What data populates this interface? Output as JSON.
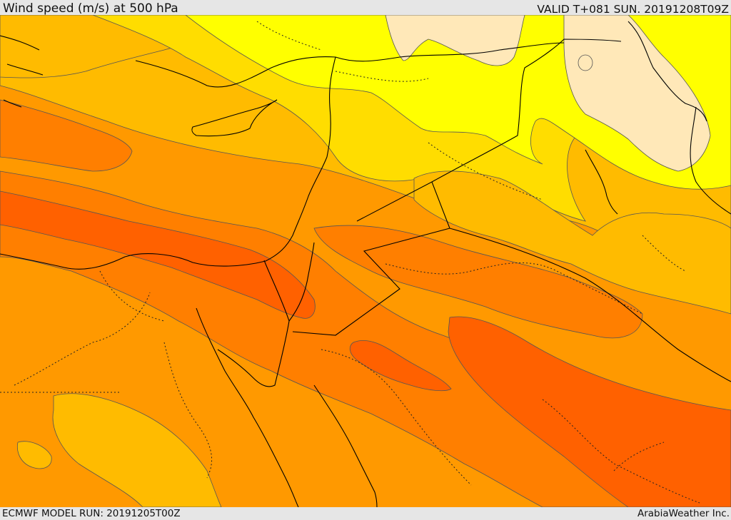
{
  "header": {
    "title": "Wind speed (m/s) at 500 hPa",
    "valid": "VALID T+081 SUN. 20191208T09Z"
  },
  "footer": {
    "model_run": "ECMWF MODEL RUN: 20191205T00Z",
    "credit": "ArabiaWeather Inc."
  },
  "map": {
    "variable": "wind speed",
    "level": "500 hPa",
    "colors": {
      "lowest": "#ffe8b8",
      "low": "#ffff00",
      "mid_low": "#ffdd00",
      "mid": "#ffbb00",
      "mid_high": "#ff9900",
      "high": "#ff7f00",
      "highest": "#ff6100",
      "contour": "#555555",
      "coast": "#000000"
    },
    "icons": [
      "country-border-lines",
      "coastline-lines"
    ]
  }
}
